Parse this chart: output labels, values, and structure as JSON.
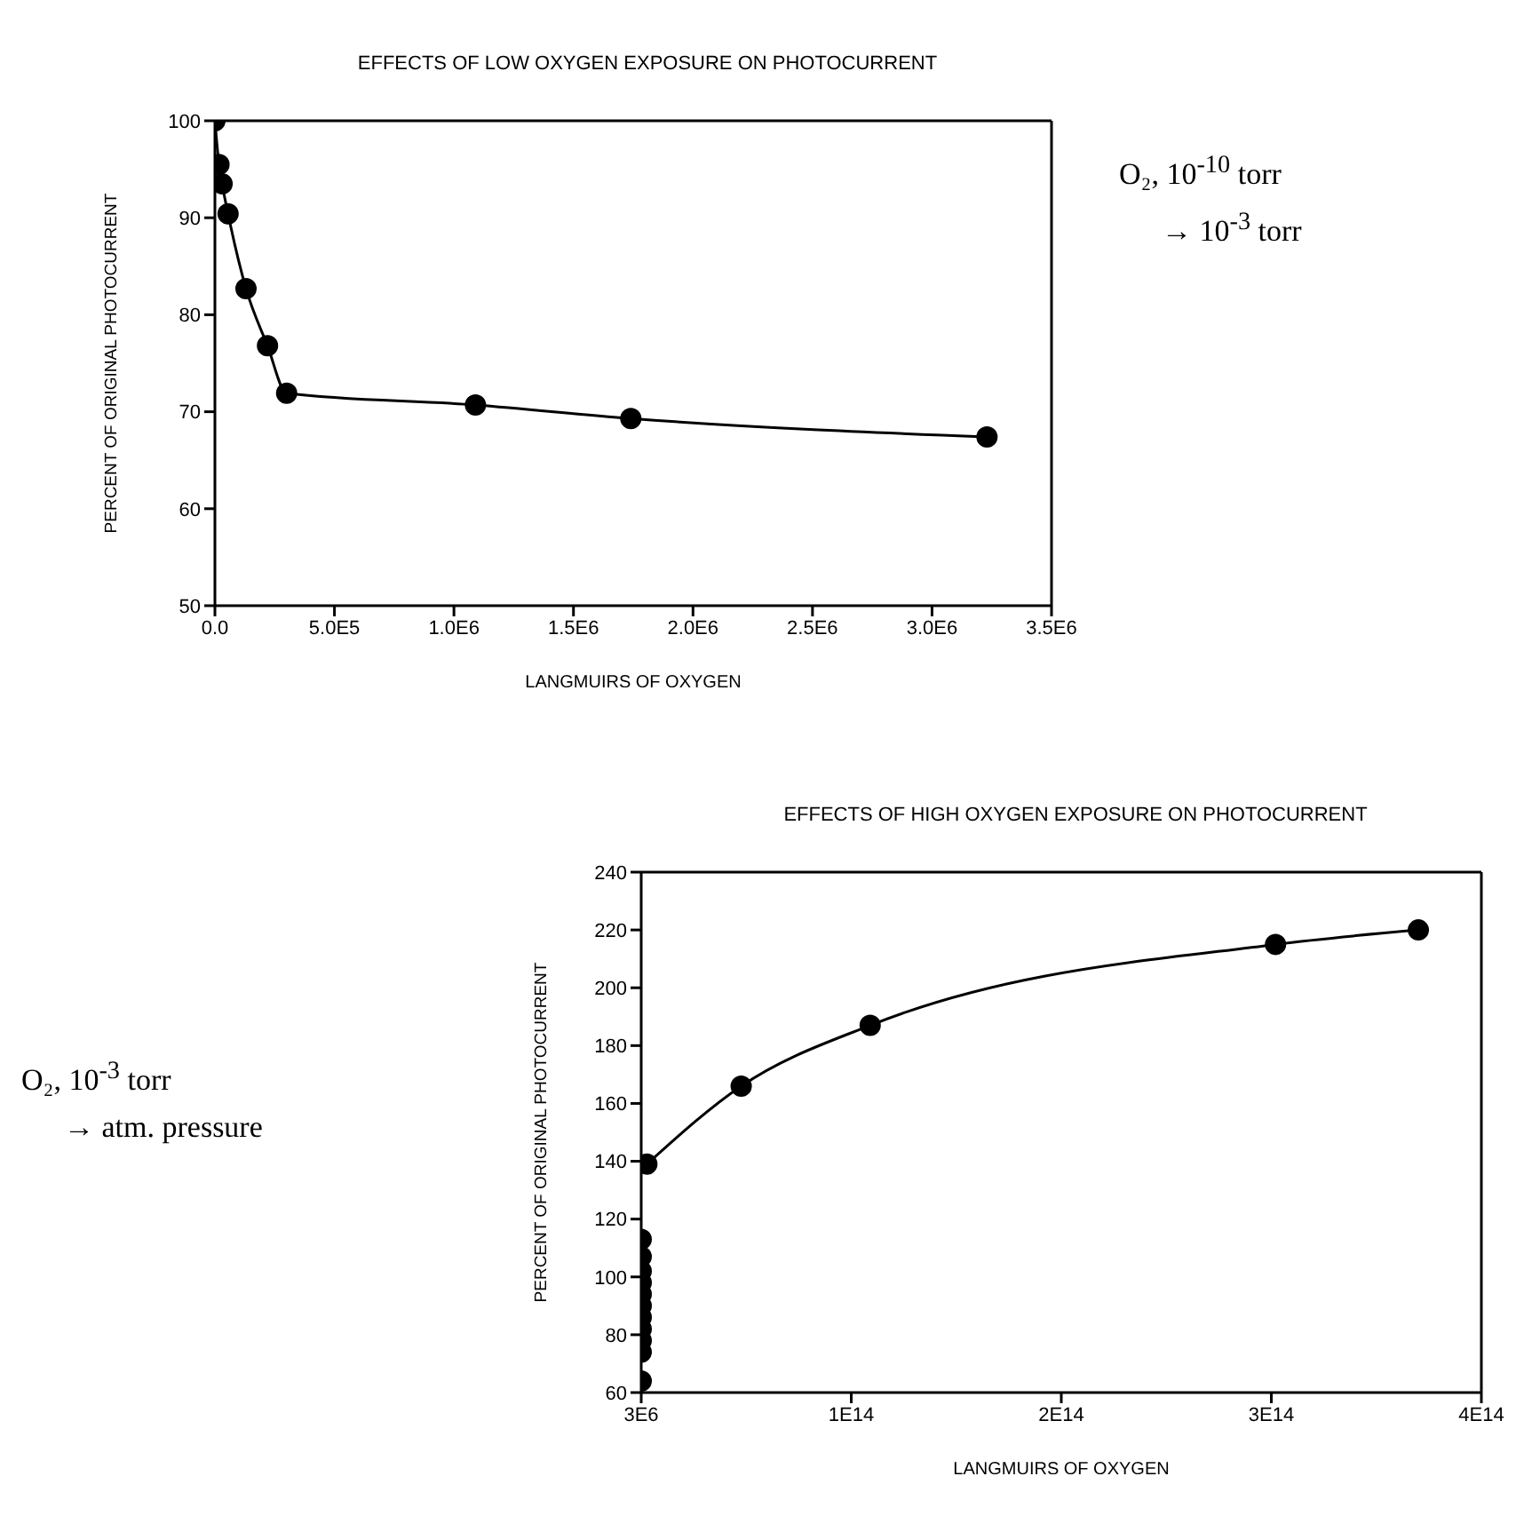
{
  "chart_data": [
    {
      "type": "line",
      "title": "EFFECTS OF LOW OXYGEN EXPOSURE ON PHOTOCURRENT",
      "xlabel": "LANGMUIRS OF OXYGEN",
      "ylabel": "PERCENT OF ORIGINAL PHOTOCURRENT",
      "x": [
        0,
        17000,
        30000,
        55000,
        130000,
        220000,
        300000,
        1090000,
        1740000,
        3230000
      ],
      "series": [
        {
          "color": "#000000",
          "values": [
            100,
            95.5,
            93.5,
            90.4,
            82.7,
            76.8,
            71.9,
            70.7,
            69.3,
            67.4
          ]
        }
      ],
      "xlim": [
        0,
        3500000
      ],
      "xticks": [
        {
          "value": 0,
          "label": "0.0"
        },
        {
          "value": 500000,
          "label": "5.0E5"
        },
        {
          "value": 1000000,
          "label": "1.0E6"
        },
        {
          "value": 1500000,
          "label": "1.5E6"
        },
        {
          "value": 2000000,
          "label": "2.0E6"
        },
        {
          "value": 2500000,
          "label": "2.5E6"
        },
        {
          "value": 3000000,
          "label": "3.0E6"
        },
        {
          "value": 3500000,
          "label": "3.5E6"
        }
      ],
      "ylim": [
        50,
        100
      ],
      "yticks": [
        50,
        60,
        70,
        80,
        90,
        100
      ],
      "marker": "circle",
      "annotations": [
        "O₂, 10$^{-10}$ torr",
        "→ 10$^{-3}$ torr"
      ]
    },
    {
      "type": "line",
      "title": "EFFECTS OF HIGH OXYGEN EXPOSURE ON PHOTOCURRENT",
      "xlabel": "LANGMUIRS OF OXYGEN",
      "ylabel": "PERCENT OF ORIGINAL PHOTOCURRENT",
      "series": [
        {
          "type": "scatter",
          "color": "#000000",
          "x": [
            3000000,
            3000000,
            3000000,
            3000000,
            3000000,
            3000000,
            3000000,
            3000000,
            3000000,
            3000000,
            3000000
          ],
          "values": [
            64,
            74,
            78,
            82,
            86,
            90,
            94,
            98,
            102,
            107,
            113
          ]
        },
        {
          "color": "#000000",
          "x": [
            2700000000000,
            47600000000000,
            109000000000000,
            302000000000000,
            370000000000000
          ],
          "values": [
            139,
            166,
            187,
            215,
            220
          ]
        }
      ],
      "xlim": [
        3000000,
        400000000000000
      ],
      "xticks": [
        {
          "value": 3000000,
          "label": "3E6"
        },
        {
          "value": 100000000000000,
          "label": "1E14"
        },
        {
          "value": 200000000000000,
          "label": "2E14"
        },
        {
          "value": 300000000000000,
          "label": "3E14"
        },
        {
          "value": 400000000000000,
          "label": "4E14"
        }
      ],
      "ylim": [
        60,
        240
      ],
      "yticks": [
        60,
        80,
        100,
        120,
        140,
        160,
        180,
        200,
        220,
        240
      ],
      "marker": "circle",
      "annotations": [
        "O₂, 10$^{-3}$ torr",
        "→ atm. pressure"
      ]
    }
  ]
}
